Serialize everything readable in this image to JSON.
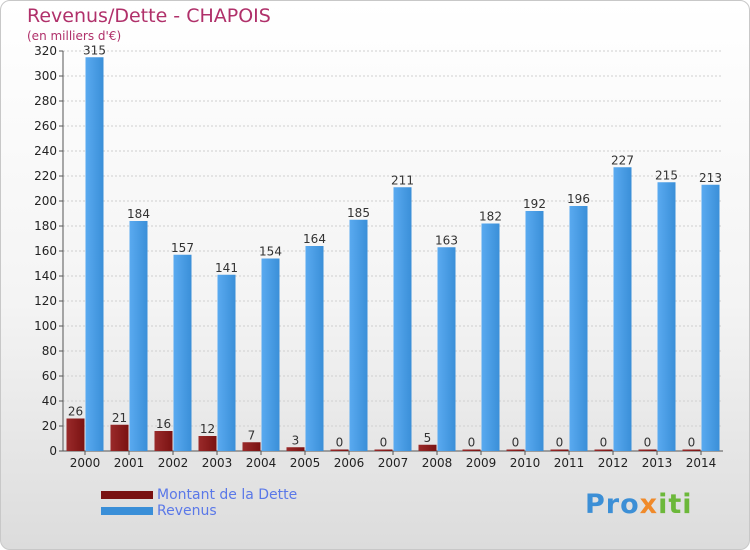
{
  "title": "Revenus/Dette - CHAPOIS",
  "subtitle": "(en milliers d'€)",
  "legend": {
    "debt_label": "Montant de la Dette",
    "revenue_label": "Revenus"
  },
  "logo": {
    "part1": "Pro",
    "part2": "x",
    "part3": "iti"
  },
  "colors": {
    "debt": "#7a1212",
    "revenue": "#3a8fd8",
    "title": "#b0306a"
  },
  "chart_data": {
    "type": "bar",
    "title": "Revenus/Dette - CHAPOIS",
    "ylabel": "(en milliers d'€)",
    "ylim": [
      0,
      320
    ],
    "yticks": [
      0,
      20,
      40,
      60,
      80,
      100,
      120,
      140,
      160,
      180,
      200,
      220,
      240,
      260,
      280,
      300,
      320
    ],
    "categories": [
      "2000",
      "2001",
      "2002",
      "2003",
      "2004",
      "2005",
      "2006",
      "2007",
      "2008",
      "2009",
      "2010",
      "2011",
      "2012",
      "2013",
      "2014"
    ],
    "series": [
      {
        "name": "Montant de la Dette",
        "values": [
          26,
          21,
          16,
          12,
          7,
          3,
          0,
          0,
          5,
          0,
          0,
          0,
          0,
          0,
          0
        ]
      },
      {
        "name": "Revenus",
        "values": [
          315,
          184,
          157,
          141,
          154,
          164,
          185,
          211,
          163,
          182,
          192,
          196,
          227,
          215,
          213
        ]
      }
    ]
  }
}
